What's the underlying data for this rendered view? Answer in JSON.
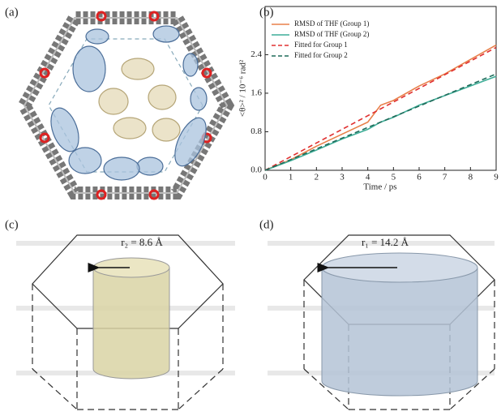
{
  "panels": {
    "a": "(a)",
    "b": "(b)",
    "c": "(c)",
    "d": "(d)"
  },
  "cylinders": {
    "c": "r₂ = 8.6 Å",
    "d": "r₁ = 14.2 Å"
  },
  "chart_data": {
    "type": "line",
    "xlabel": "Time / ps",
    "ylabel": "<θ>² / 10⁻⁶ rad²",
    "x": [
      0,
      1,
      2,
      3,
      4,
      4.5,
      5,
      6,
      7,
      8,
      9
    ],
    "series": [
      {
        "name": "RMSD of THF (Group 1)",
        "color": "#e8804a",
        "dash": false,
        "values": [
          0,
          0.22,
          0.5,
          0.75,
          1.0,
          1.35,
          1.45,
          1.75,
          2.0,
          2.3,
          2.6
        ]
      },
      {
        "name": "RMSD of THF (Group 2)",
        "color": "#3fae98",
        "dash": false,
        "values": [
          0,
          0.2,
          0.42,
          0.65,
          0.85,
          1.0,
          1.1,
          1.35,
          1.55,
          1.75,
          1.95
        ]
      },
      {
        "name": "Fitted for Group 1",
        "color": "#e03030",
        "dash": true,
        "values": [
          0,
          0.283,
          0.567,
          0.85,
          1.133,
          1.275,
          1.417,
          1.7,
          1.983,
          2.267,
          2.55
        ]
      },
      {
        "name": "Fitted for Group 2",
        "color": "#1e6b5a",
        "dash": true,
        "values": [
          0,
          0.222,
          0.444,
          0.667,
          0.889,
          1.0,
          1.111,
          1.333,
          1.556,
          1.778,
          2.0
        ]
      }
    ],
    "xlim": [
      0,
      9
    ],
    "xticks": [
      0,
      1,
      2,
      3,
      4,
      5,
      6,
      7,
      8,
      9
    ],
    "ylim": [
      0,
      3.4
    ],
    "yticks": [
      {
        "value": 0,
        "label": "0.0"
      },
      0.8,
      1.6,
      2.4
    ],
    "legend": "upper left"
  }
}
